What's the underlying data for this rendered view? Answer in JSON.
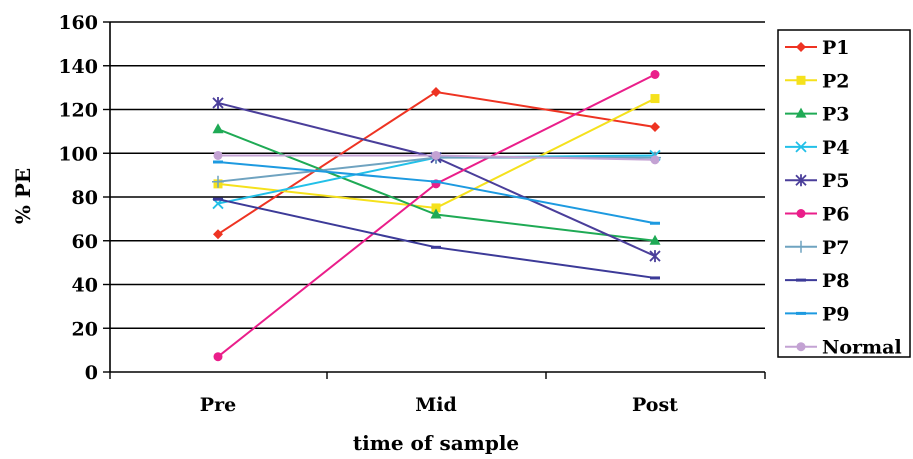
{
  "chart_data": {
    "type": "line",
    "xlabel": "time of sample",
    "ylabel": "% PE",
    "categories": [
      "Pre",
      "Mid",
      "Post"
    ],
    "ylim": [
      0,
      160
    ],
    "yticks": [
      0,
      20,
      40,
      60,
      80,
      100,
      120,
      140,
      160
    ],
    "grid": "horizontal",
    "legend_position": "right",
    "series": [
      {
        "name": "P1",
        "color": "#ee3322",
        "marker": "diamond",
        "values": [
          63,
          128,
          112
        ]
      },
      {
        "name": "P2",
        "color": "#f5e11c",
        "marker": "square",
        "values": [
          86,
          75,
          125
        ]
      },
      {
        "name": "P3",
        "color": "#1faa55",
        "marker": "triangle",
        "values": [
          111,
          72,
          60
        ]
      },
      {
        "name": "P4",
        "color": "#22c0e8",
        "marker": "x",
        "values": [
          77,
          98,
          99
        ]
      },
      {
        "name": "P5",
        "color": "#4a3e9a",
        "marker": "asterisk",
        "values": [
          123,
          98,
          53
        ]
      },
      {
        "name": "P6",
        "color": "#ea1e8a",
        "marker": "circle",
        "values": [
          7,
          86,
          136
        ]
      },
      {
        "name": "P7",
        "color": "#6fa3c0",
        "marker": "plus",
        "values": [
          87,
          98,
          98
        ]
      },
      {
        "name": "P8",
        "color": "#3c3a98",
        "marker": "dash",
        "values": [
          79,
          57,
          43
        ]
      },
      {
        "name": "P9",
        "color": "#1d9ae0",
        "marker": "dash",
        "values": [
          96,
          87,
          68
        ]
      },
      {
        "name": "Normal",
        "color": "#c3a2d3",
        "marker": "circle",
        "values": [
          99,
          99,
          97
        ]
      }
    ]
  }
}
